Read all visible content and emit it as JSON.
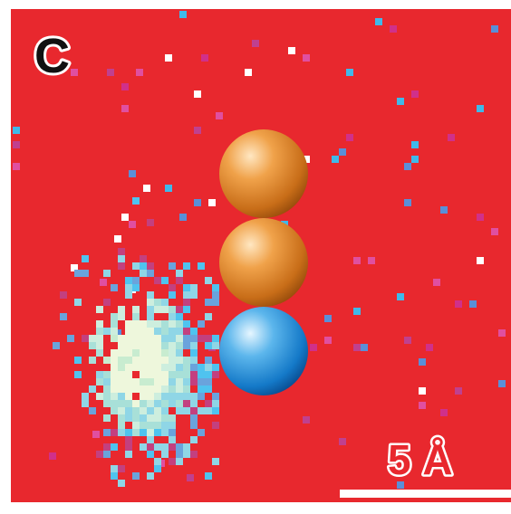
{
  "panel_label": "C",
  "scale_bar": {
    "label": "5 Å"
  }
}
